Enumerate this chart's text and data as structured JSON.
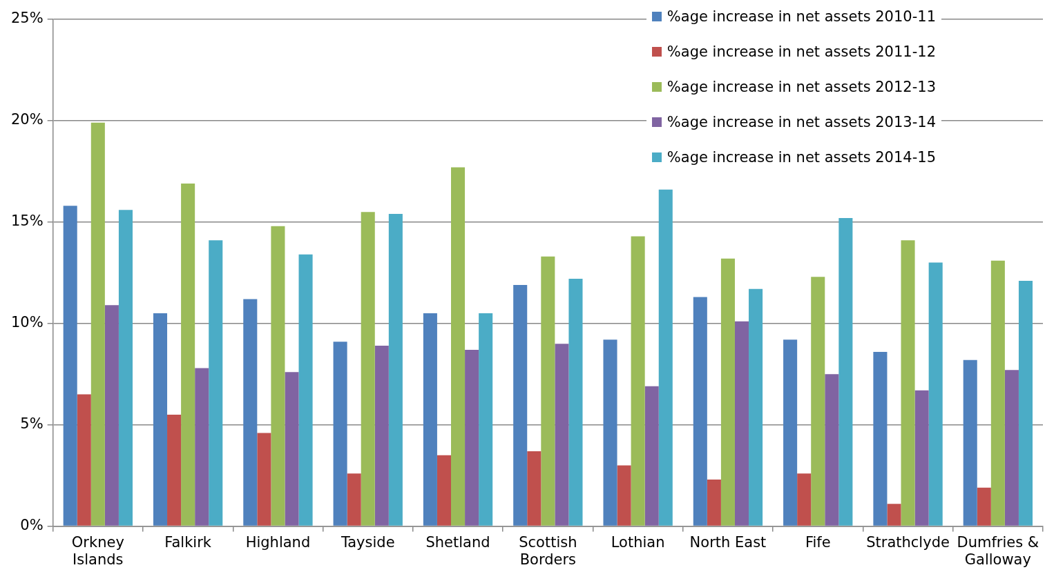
{
  "chart_data": {
    "type": "bar",
    "categories": [
      "Orkney Islands",
      "Falkirk",
      "Highland",
      "Tayside",
      "Shetland",
      "Scottish Borders",
      "Lothian",
      "North East",
      "Fife",
      "Strathclyde",
      "Dumfries & Galloway"
    ],
    "series": [
      {
        "name": "%age increase in net assets 2010-11",
        "color": "#4f81bd",
        "values": [
          15.8,
          10.5,
          11.2,
          9.1,
          10.5,
          11.9,
          9.2,
          11.3,
          9.2,
          8.6,
          8.2
        ]
      },
      {
        "name": "%age increase in net assets 2011-12",
        "color": "#c0504d",
        "values": [
          6.5,
          5.5,
          4.6,
          2.6,
          3.5,
          3.7,
          3.0,
          2.3,
          2.6,
          1.1,
          1.9
        ]
      },
      {
        "name": "%age increase in net assets 2012-13",
        "color": "#9bbb59",
        "values": [
          19.9,
          16.9,
          14.8,
          15.5,
          17.7,
          13.3,
          14.3,
          13.2,
          12.3,
          14.1,
          13.1
        ]
      },
      {
        "name": "%age increase in net assets 2013-14",
        "color": "#8064a2",
        "values": [
          10.9,
          7.8,
          7.6,
          8.9,
          8.7,
          9.0,
          6.9,
          10.1,
          7.5,
          6.7,
          7.7
        ]
      },
      {
        "name": "%age increase in net assets 2014-15",
        "color": "#4bacc6",
        "values": [
          15.6,
          14.1,
          13.4,
          15.4,
          10.5,
          12.2,
          16.6,
          11.7,
          15.2,
          13.0,
          12.1
        ]
      }
    ],
    "ylim": [
      0,
      25
    ],
    "yticks": [
      {
        "value": 0,
        "label": "0%"
      },
      {
        "value": 5,
        "label": "5%"
      },
      {
        "value": 10,
        "label": "10%"
      },
      {
        "value": 15,
        "label": "15%"
      },
      {
        "value": 20,
        "label": "20%"
      },
      {
        "value": 25,
        "label": "25%"
      }
    ],
    "grid": "y",
    "legend": "top right"
  }
}
